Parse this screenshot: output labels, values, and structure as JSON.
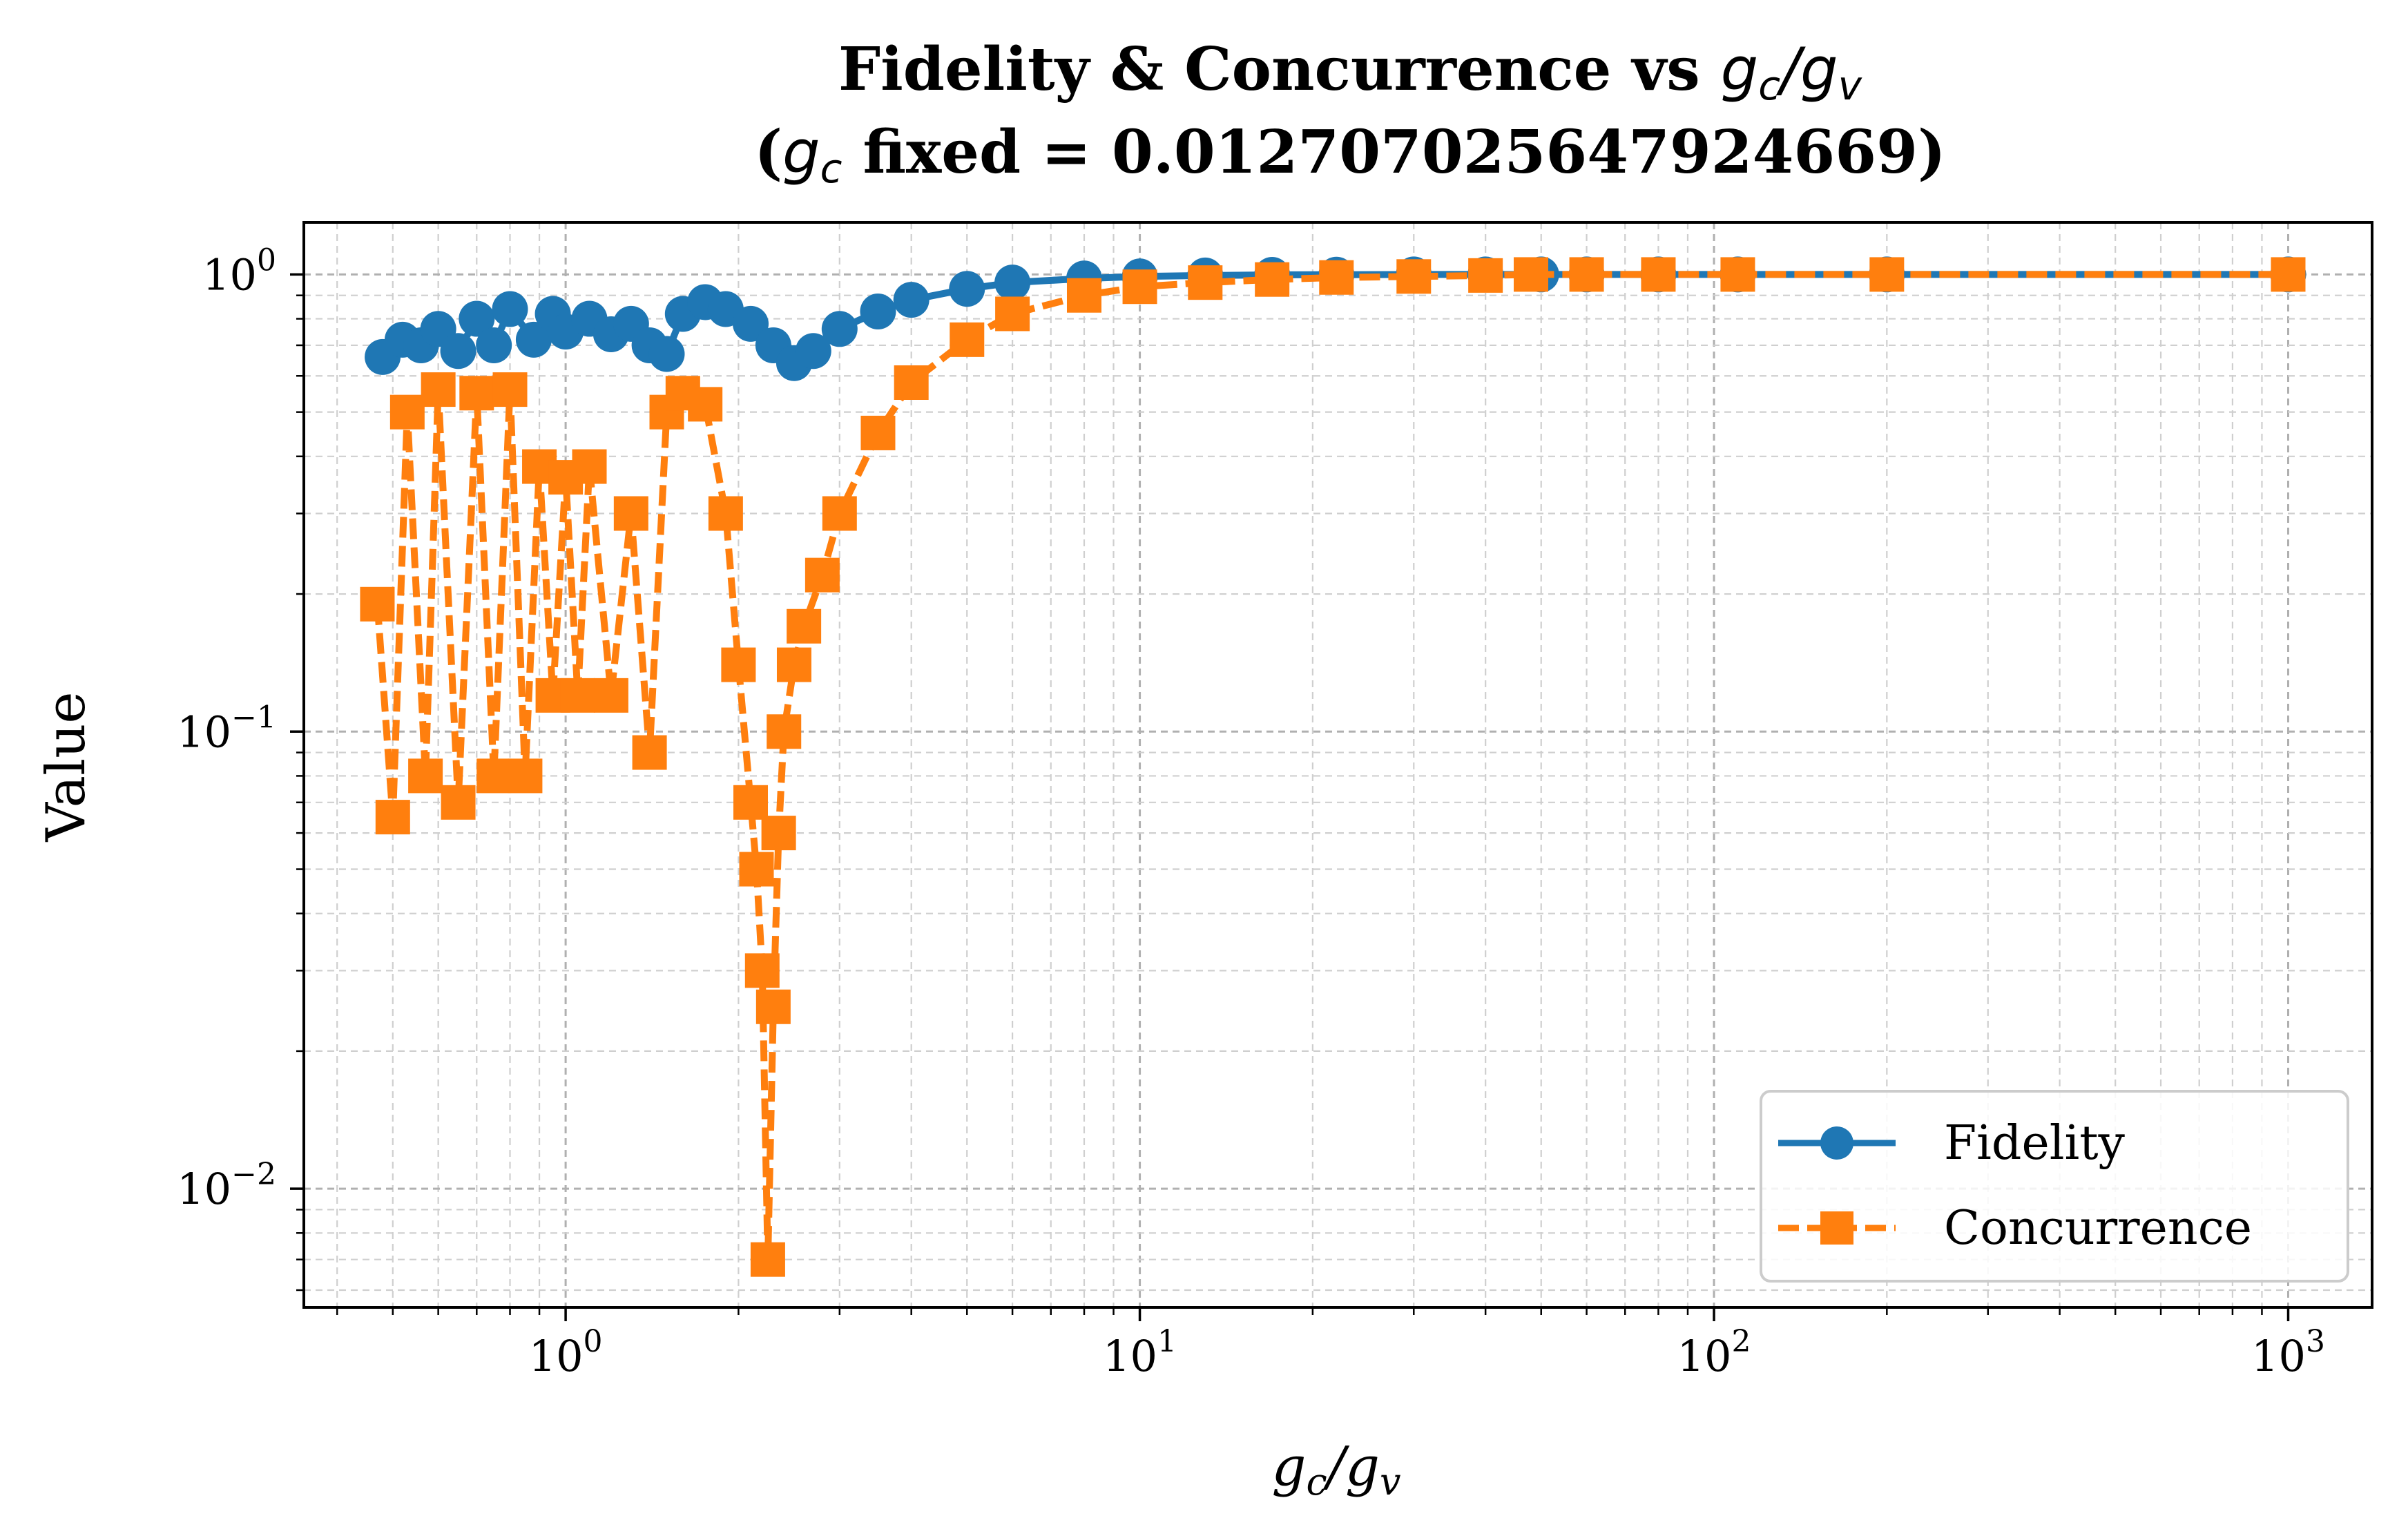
{
  "chart_data": {
    "type": "line",
    "title_line1_prefix": "Fidelity & Concurrence vs ",
    "title_line2_prefix": "(",
    "title_line2_suffix": " fixed = 0.012707025647924669)",
    "xlabel": "g_c/g_v",
    "ylabel": "Value",
    "xscale": "log",
    "yscale": "log",
    "xlim": [
      0.35,
      1400
    ],
    "ylim": [
      0.0055,
      1.3
    ],
    "grid": true,
    "legend_position": "lower-right",
    "x_ticks": [
      {
        "base": "10",
        "exp": "0",
        "value": 1
      },
      {
        "base": "10",
        "exp": "1",
        "value": 10
      },
      {
        "base": "10",
        "exp": "2",
        "value": 100
      },
      {
        "base": "10",
        "exp": "3",
        "value": 1000
      }
    ],
    "y_ticks": [
      {
        "base": "10",
        "exp": "0",
        "value": 1
      },
      {
        "base": "10",
        "exp": "−1",
        "value": 0.1
      },
      {
        "base": "10",
        "exp": "−2",
        "value": 0.01
      }
    ],
    "series": [
      {
        "name": "Fidelity",
        "color": "#1f77b4",
        "marker": "circle",
        "linestyle": "solid",
        "x": [
          0.48,
          0.52,
          0.56,
          0.6,
          0.65,
          0.7,
          0.75,
          0.8,
          0.88,
          0.95,
          1.0,
          1.1,
          1.2,
          1.3,
          1.4,
          1.5,
          1.6,
          1.75,
          1.9,
          2.1,
          2.3,
          2.5,
          2.7,
          3.0,
          3.5,
          4,
          5,
          6,
          8,
          10,
          13,
          17,
          22,
          30,
          40,
          50,
          60,
          80,
          110,
          200,
          1000
        ],
        "y": [
          0.66,
          0.72,
          0.7,
          0.76,
          0.68,
          0.8,
          0.7,
          0.84,
          0.72,
          0.82,
          0.75,
          0.8,
          0.74,
          0.78,
          0.7,
          0.67,
          0.82,
          0.87,
          0.84,
          0.78,
          0.7,
          0.64,
          0.68,
          0.76,
          0.83,
          0.88,
          0.93,
          0.96,
          0.98,
          0.99,
          0.995,
          0.998,
          0.999,
          1.0,
          1.0,
          1.0,
          1.0,
          1.0,
          1.0,
          1.0,
          1.0
        ]
      },
      {
        "name": "Concurrence",
        "color": "#ff7f0e",
        "marker": "square",
        "linestyle": "dashed",
        "x": [
          0.47,
          0.5,
          0.53,
          0.57,
          0.6,
          0.65,
          0.7,
          0.75,
          0.8,
          0.85,
          0.9,
          0.95,
          1.0,
          1.05,
          1.1,
          1.2,
          1.3,
          1.4,
          1.5,
          1.6,
          1.75,
          1.9,
          2.0,
          2.1,
          2.15,
          2.2,
          2.25,
          2.3,
          2.35,
          2.4,
          2.5,
          2.6,
          2.8,
          3.0,
          3.5,
          4,
          5,
          6,
          8,
          10,
          13,
          17,
          22,
          30,
          40,
          48,
          60,
          80,
          110,
          200,
          1000
        ],
        "y": [
          0.19,
          0.065,
          0.5,
          0.08,
          0.56,
          0.07,
          0.55,
          0.08,
          0.56,
          0.08,
          0.38,
          0.12,
          0.36,
          0.12,
          0.38,
          0.12,
          0.3,
          0.09,
          0.5,
          0.55,
          0.52,
          0.3,
          0.14,
          0.07,
          0.05,
          0.03,
          0.007,
          0.025,
          0.06,
          0.1,
          0.14,
          0.17,
          0.22,
          0.3,
          0.45,
          0.58,
          0.72,
          0.82,
          0.9,
          0.94,
          0.96,
          0.975,
          0.985,
          0.99,
          0.995,
          1.0,
          1.0,
          1.0,
          1.0,
          1.0,
          1.0
        ]
      }
    ]
  }
}
